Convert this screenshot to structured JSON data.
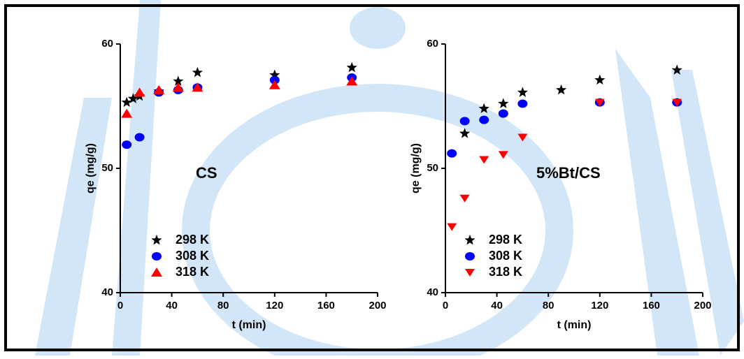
{
  "chart_data": [
    {
      "type": "scatter",
      "annotation": "CS",
      "xlabel": "t (min)",
      "ylabel": "qe (mg/g)",
      "xlim": [
        0,
        200
      ],
      "xticks": [
        0,
        40,
        80,
        120,
        160,
        200
      ],
      "ylim": [
        40,
        60
      ],
      "yticks": [
        40,
        50,
        60
      ],
      "series": [
        {
          "name": "298 K",
          "color": "#000000",
          "marker": "star",
          "x": [
            5,
            10,
            15,
            30,
            45,
            60,
            120,
            180
          ],
          "values": [
            55.3,
            55.6,
            55.8,
            56.2,
            57.0,
            57.7,
            57.5,
            58.1
          ]
        },
        {
          "name": "308 K",
          "color": "#0000ff",
          "marker": "circle",
          "x": [
            5,
            15,
            30,
            45,
            60,
            120,
            180
          ],
          "values": [
            51.9,
            52.5,
            56.1,
            56.3,
            56.5,
            57.1,
            57.3
          ]
        },
        {
          "name": "318 K",
          "color": "#ff0000",
          "marker": "triangle-up",
          "x": [
            5,
            15,
            30,
            45,
            60,
            120,
            180
          ],
          "values": [
            54.4,
            56.1,
            56.3,
            56.5,
            56.5,
            56.7,
            57.0
          ]
        }
      ]
    },
    {
      "type": "scatter",
      "annotation": "5%Bt/CS",
      "xlabel": "t (min)",
      "ylabel": "qe (mg/g)",
      "xlim": [
        0,
        200
      ],
      "xticks": [
        0,
        40,
        80,
        120,
        160,
        200
      ],
      "ylim": [
        40,
        60
      ],
      "yticks": [
        40,
        50,
        60
      ],
      "series": [
        {
          "name": "298 K",
          "color": "#000000",
          "marker": "star",
          "x": [
            15,
            30,
            45,
            60,
            90,
            120,
            180
          ],
          "values": [
            52.8,
            54.8,
            55.2,
            56.1,
            56.3,
            57.1,
            57.9
          ]
        },
        {
          "name": "308 K",
          "color": "#0000ff",
          "marker": "circle",
          "x": [
            5,
            15,
            30,
            45,
            60,
            120,
            180
          ],
          "values": [
            51.2,
            53.8,
            53.9,
            54.4,
            55.2,
            55.3,
            55.3
          ]
        },
        {
          "name": "318 K",
          "color": "#ff0000",
          "marker": "triangle-down",
          "x": [
            5,
            15,
            30,
            45,
            60,
            120,
            180
          ],
          "values": [
            45.3,
            47.6,
            50.7,
            51.1,
            52.5,
            55.3,
            55.3
          ]
        }
      ]
    }
  ]
}
